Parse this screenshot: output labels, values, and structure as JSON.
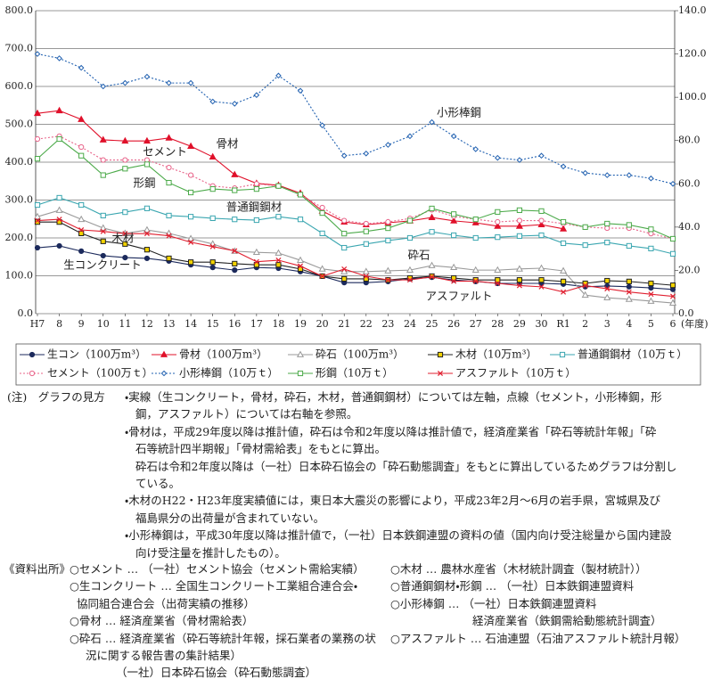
{
  "chart_data": {
    "type": "line",
    "categories": [
      "H7",
      "8",
      "9",
      "10",
      "11",
      "12",
      "13",
      "14",
      "15",
      "16",
      "17",
      "18",
      "19",
      "20",
      "21",
      "22",
      "23",
      "24",
      "25",
      "26",
      "27",
      "28",
      "29",
      "30",
      "R1",
      "2",
      "3",
      "4",
      "5",
      "6"
    ],
    "x_label": "(年度)",
    "ylim": [
      0,
      800
    ],
    "yticks": [
      {
        "value": 0,
        "label": "0.0"
      },
      {
        "value": 100,
        "label": "100.0"
      },
      {
        "value": 200,
        "label": "200.0"
      },
      {
        "value": 300,
        "label": "300.0"
      },
      {
        "value": 400,
        "label": "400.0"
      },
      {
        "value": 500,
        "label": "500.0"
      },
      {
        "value": 600,
        "label": "600.0"
      },
      {
        "value": 700,
        "label": "700.0"
      },
      {
        "value": 800,
        "label": "800.0"
      }
    ],
    "y2lim": [
      0,
      140
    ],
    "y2ticks": [
      {
        "value": 0,
        "label": "0.0"
      },
      {
        "value": 20,
        "label": "20.0"
      },
      {
        "value": 40,
        "label": "40.0"
      },
      {
        "value": 60,
        "label": "60.0"
      },
      {
        "value": 80,
        "label": "80.0"
      },
      {
        "value": 100,
        "label": "100.0"
      },
      {
        "value": 120,
        "label": "120.0"
      },
      {
        "value": 140,
        "label": "140.0"
      }
    ],
    "grid": true,
    "series": [
      {
        "name": "生コン（100万m³）",
        "color": "#1c2a5c",
        "marker": "circle",
        "filled": true,
        "dash": false,
        "values": [
          174,
          179,
          165,
          153,
          148,
          146,
          139,
          129,
          122,
          115,
          122,
          120,
          111,
          99,
          82,
          82,
          85,
          92,
          96,
          89,
          85,
          80,
          80,
          80,
          78,
          71,
          73,
          71,
          68,
          64
        ]
      },
      {
        "name": "骨材（100万m³）",
        "color": "#e0102a",
        "marker": "triangle",
        "filled": true,
        "dash": false,
        "values": [
          529,
          536,
          513,
          459,
          456,
          456,
          464,
          442,
          414,
          367,
          344,
          339,
          318,
          271,
          242,
          235,
          240,
          245,
          254,
          245,
          240,
          231,
          231,
          235,
          224,
          null,
          null,
          null,
          null,
          null
        ]
      },
      {
        "name": "砕石（100万m³）",
        "color": "#9a9a9a",
        "marker": "triangle",
        "filled": false,
        "dash": false,
        "values": [
          256,
          273,
          249,
          226,
          212,
          221,
          212,
          198,
          184,
          165,
          162,
          160,
          141,
          118,
          111,
          111,
          113,
          115,
          127,
          122,
          115,
          115,
          118,
          120,
          113,
          49,
          42,
          38,
          33,
          28
        ]
      },
      {
        "name": "木材（10万m³）",
        "color": "#222222",
        "marker": "square",
        "filled": true,
        "marker_fill": "#f2d200",
        "dash": false,
        "values": [
          242,
          242,
          212,
          191,
          184,
          169,
          146,
          136,
          136,
          132,
          129,
          129,
          118,
          99,
          92,
          92,
          89,
          94,
          99,
          94,
          89,
          89,
          89,
          89,
          85,
          80,
          87,
          85,
          80,
          75
        ]
      },
      {
        "name": "普通鋼鋼材（10万ｔ）",
        "color": "#3aa6b0",
        "marker": "square",
        "filled": false,
        "dash": false,
        "values": [
          287,
          306,
          287,
          259,
          268,
          278,
          259,
          256,
          252,
          249,
          247,
          256,
          249,
          212,
          174,
          184,
          193,
          200,
          216,
          207,
          200,
          202,
          205,
          207,
          186,
          181,
          188,
          179,
          172,
          158
        ]
      },
      {
        "name": "セメント（100万ｔ）",
        "color": "#e8648a",
        "marker": "circle",
        "filled": false,
        "dash": true,
        "axis": "y2",
        "values": [
          80.7,
          82,
          77,
          71,
          71,
          71,
          67.5,
          64,
          59,
          58,
          60,
          59,
          55,
          49,
          43,
          41.6,
          42.4,
          44,
          48,
          45,
          43.6,
          42.4,
          43,
          43,
          41.6,
          40,
          39.5,
          39.5,
          37,
          34.6
        ]
      },
      {
        "name": "小形棒鋼（10万ｔ）",
        "color": "#2060b0",
        "marker": "diamond",
        "filled": false,
        "dash": true,
        "axis": "y2",
        "values": [
          120,
          118,
          113.6,
          105,
          106.6,
          109.5,
          106.6,
          106.6,
          98,
          97,
          101,
          110,
          103,
          87,
          73,
          74,
          78,
          82,
          88.5,
          82,
          76,
          72,
          71,
          73,
          68,
          65,
          64,
          64,
          62.5,
          60
        ]
      },
      {
        "name": "形鋼（10万ｔ）",
        "color": "#4caa4a",
        "marker": "square",
        "filled": false,
        "dash": false,
        "axis": "y2",
        "values": [
          71.6,
          80.7,
          73,
          64,
          67,
          69,
          60.5,
          56,
          57.6,
          57,
          57.6,
          59,
          55,
          46.5,
          37,
          38,
          39.5,
          43,
          48.6,
          46,
          43.6,
          47,
          47.8,
          47.4,
          42.4,
          40,
          41.6,
          41,
          39,
          34.6
        ]
      },
      {
        "name": "アスファルト（10万ｔ）",
        "color": "#e02030",
        "marker": "x",
        "filled": false,
        "dash": false,
        "axis": "y2",
        "values": [
          43,
          43.6,
          38.7,
          38,
          37,
          37,
          36,
          33,
          31,
          29,
          24,
          24.7,
          22,
          17.3,
          20.6,
          17.3,
          15.6,
          15.6,
          17,
          15,
          15,
          14,
          13,
          12.4,
          10,
          13,
          11.5,
          10,
          9,
          8
        ]
      }
    ],
    "annotations": [
      "骨材",
      "セメント",
      "形鋼",
      "普通鋼鋼材",
      "木材",
      "生コンクリート",
      "小形棒鋼",
      "砕石",
      "アスファルト"
    ]
  },
  "notes": {
    "heading": "(注)　グラフの見方",
    "lines": [
      "・実線（生コンクリート，骨材，砕石，木材，普通鋼鋼材）については左軸，点線（セメント，小形棒鋼，形",
      "鋼，アスファルト）については右軸を参照。",
      "・骨材は，平成29年度以降は推計値，砕石は令和2年度以降は推計値で，経済産業省「砕石等統計年報」「砕",
      "石等統計四半期報」「骨材需給表」をもとに算出。",
      "砕石は令和2年度以降は（一社）日本砕石協会の「砕石動態調査」をもとに算出しているためグラフは分割し",
      "ている。",
      "・木材のH22・H23年度実績値には，東日本大震災の影響により，平成23年2月～6月の岩手県，宮城県及び",
      "福島県分の出荷量が含まれていない。",
      "・小形棒鋼は，平成30年度以降は推計値で，（一社）日本鉄鋼連盟の資料の値（国内向け受注総量から国内建設",
      "向け受注量を推計したもの）。"
    ]
  },
  "sources": {
    "heading": "《資料出所》",
    "left": [
      "○セメント … （一社）セメント協会（セメント需給実績）",
      "○生コンクリート … 全国生コンクリート工業組合連合会・",
      "協同組合連合会（出荷実績の推移）",
      "○骨材 … 経済産業省（骨材需給表）",
      "○砕石 … 経済産業省（砕石等統計年報，採石業者の業務の状",
      "況に関する報告書の集計結果）",
      "（一社）日本砕石協会（砕石動態調査）"
    ],
    "right": [
      "○木材 … 農林水産省（木材統計調査（製材統計））",
      "○普通鋼鋼材・形鋼 … （一社）日本鉄鋼連盟資料",
      "○小形棒鋼 … （一社）日本鉄鋼連盟資料",
      "経済産業省（鉄鋼需給動態統計調査）",
      "○アスファルト … 石油連盟（石油アスファルト統計月報）"
    ]
  }
}
